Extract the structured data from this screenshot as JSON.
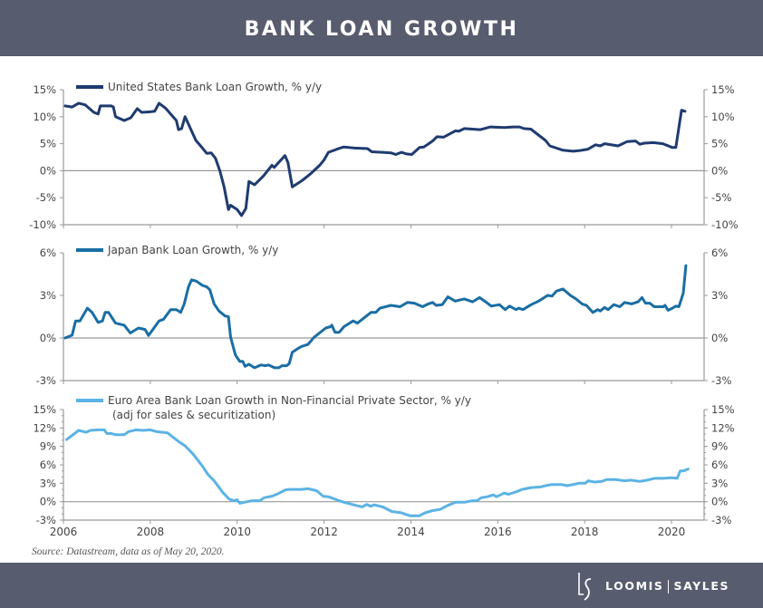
{
  "header": {
    "title": "BANK LOAN GROWTH"
  },
  "source": "Source: Datastream, data as of May 20, 2020.",
  "logo": {
    "left": "LOOMIS",
    "right": "SAYLES",
    "mark": "LS"
  },
  "chart_data": [
    {
      "type": "line",
      "legend": [
        "United States Bank Loan Growth, % y/y"
      ],
      "color": "#1f3b70",
      "ylim": [
        -10,
        15
      ],
      "yticks": [
        "15%",
        "10%",
        "5%",
        "0%",
        "-5%",
        "-10%"
      ],
      "ytick_values": [
        15,
        10,
        5,
        0,
        -5,
        -10
      ],
      "xlim": [
        2006,
        2020.75
      ],
      "points": [
        [
          2006.04,
          12
        ],
        [
          2006.2,
          11.8
        ],
        [
          2006.35,
          12.5
        ],
        [
          2006.5,
          12.2
        ],
        [
          2006.7,
          10.8
        ],
        [
          2006.8,
          10.5
        ],
        [
          2006.85,
          12
        ],
        [
          2007.1,
          12
        ],
        [
          2007.15,
          11.8
        ],
        [
          2007.2,
          10
        ],
        [
          2007.4,
          9.3
        ],
        [
          2007.55,
          9.8
        ],
        [
          2007.7,
          11.5
        ],
        [
          2007.8,
          10.8
        ],
        [
          2008.0,
          10.9
        ],
        [
          2008.1,
          11
        ],
        [
          2008.2,
          12.5
        ],
        [
          2008.35,
          11.6
        ],
        [
          2008.6,
          9.3
        ],
        [
          2008.65,
          7.6
        ],
        [
          2008.72,
          7.8
        ],
        [
          2008.8,
          10
        ],
        [
          2009.05,
          5.6
        ],
        [
          2009.2,
          4.2
        ],
        [
          2009.3,
          3.2
        ],
        [
          2009.4,
          3.3
        ],
        [
          2009.5,
          2.3
        ],
        [
          2009.6,
          0
        ],
        [
          2009.7,
          -3
        ],
        [
          2009.8,
          -7.2
        ],
        [
          2009.85,
          -6.4
        ],
        [
          2010.0,
          -7.2
        ],
        [
          2010.1,
          -8.3
        ],
        [
          2010.2,
          -7
        ],
        [
          2010.27,
          -2
        ],
        [
          2010.4,
          -2.6
        ],
        [
          2010.6,
          -1
        ],
        [
          2010.8,
          1
        ],
        [
          2010.85,
          0.6
        ],
        [
          2011.1,
          2.8
        ],
        [
          2011.17,
          1.5
        ],
        [
          2011.27,
          -3
        ],
        [
          2011.5,
          -1.8
        ],
        [
          2011.7,
          -0.5
        ],
        [
          2011.9,
          1
        ],
        [
          2012.0,
          2
        ],
        [
          2012.1,
          3.4
        ],
        [
          2012.3,
          4
        ],
        [
          2012.45,
          4.4
        ],
        [
          2012.7,
          4.2
        ],
        [
          2013.0,
          4.1
        ],
        [
          2013.1,
          3.5
        ],
        [
          2013.35,
          3.4
        ],
        [
          2013.54,
          3.3
        ],
        [
          2013.65,
          3.0
        ],
        [
          2013.78,
          3.4
        ],
        [
          2013.9,
          3.1
        ],
        [
          2014.02,
          3.0
        ],
        [
          2014.2,
          4.3
        ],
        [
          2014.3,
          4.4
        ],
        [
          2014.5,
          5.5
        ],
        [
          2014.6,
          6.3
        ],
        [
          2014.75,
          6.2
        ],
        [
          2015.03,
          7.4
        ],
        [
          2015.1,
          7.3
        ],
        [
          2015.23,
          7.8
        ],
        [
          2015.6,
          7.6
        ],
        [
          2015.83,
          8.1
        ],
        [
          2016.15,
          8.0
        ],
        [
          2016.35,
          8.1
        ],
        [
          2016.5,
          8.1
        ],
        [
          2016.6,
          7.8
        ],
        [
          2016.76,
          7.7
        ],
        [
          2017.1,
          5.6
        ],
        [
          2017.2,
          4.6
        ],
        [
          2017.5,
          3.8
        ],
        [
          2017.73,
          3.6
        ],
        [
          2017.87,
          3.7
        ],
        [
          2018.08,
          4.0
        ],
        [
          2018.25,
          4.8
        ],
        [
          2018.36,
          4.6
        ],
        [
          2018.46,
          5.0
        ],
        [
          2018.77,
          4.6
        ],
        [
          2018.98,
          5.4
        ],
        [
          2019.17,
          5.5
        ],
        [
          2019.27,
          4.9
        ],
        [
          2019.37,
          5.1
        ],
        [
          2019.58,
          5.2
        ],
        [
          2019.8,
          5.0
        ],
        [
          2020.02,
          4.3
        ],
        [
          2020.1,
          4.3
        ],
        [
          2020.23,
          11.2
        ],
        [
          2020.31,
          11.0
        ]
      ]
    },
    {
      "type": "line",
      "legend": [
        "Japan Bank Loan Growth, % y/y"
      ],
      "color": "#1a6ea4",
      "ylim": [
        -3,
        6
      ],
      "yticks": [
        "6%",
        "3%",
        "0%",
        "-3%"
      ],
      "ytick_values": [
        6,
        3,
        0,
        -3
      ],
      "xlim": [
        2006,
        2020.75
      ],
      "points": [
        [
          2006.04,
          0
        ],
        [
          2006.2,
          0.2
        ],
        [
          2006.28,
          1.2
        ],
        [
          2006.38,
          1.2
        ],
        [
          2006.55,
          2.1
        ],
        [
          2006.66,
          1.8
        ],
        [
          2006.8,
          1.1
        ],
        [
          2006.9,
          1.2
        ],
        [
          2006.96,
          1.8
        ],
        [
          2007.04,
          1.8
        ],
        [
          2007.2,
          1.05
        ],
        [
          2007.4,
          0.9
        ],
        [
          2007.54,
          0.35
        ],
        [
          2007.73,
          0.7
        ],
        [
          2007.88,
          0.6
        ],
        [
          2007.96,
          0.17
        ],
        [
          2008.2,
          1.2
        ],
        [
          2008.3,
          1.3
        ],
        [
          2008.47,
          2.0
        ],
        [
          2008.6,
          2.0
        ],
        [
          2008.7,
          1.8
        ],
        [
          2008.78,
          2.4
        ],
        [
          2008.88,
          3.6
        ],
        [
          2008.95,
          4.1
        ],
        [
          2009.06,
          4.0
        ],
        [
          2009.2,
          3.7
        ],
        [
          2009.3,
          3.6
        ],
        [
          2009.37,
          3.4
        ],
        [
          2009.47,
          2.4
        ],
        [
          2009.58,
          1.9
        ],
        [
          2009.72,
          1.55
        ],
        [
          2009.8,
          1.5
        ],
        [
          2009.85,
          0.05
        ],
        [
          2009.96,
          -1.2
        ],
        [
          2010.06,
          -1.65
        ],
        [
          2010.13,
          -1.65
        ],
        [
          2010.18,
          -2.0
        ],
        [
          2010.27,
          -1.85
        ],
        [
          2010.4,
          -2.1
        ],
        [
          2010.55,
          -1.9
        ],
        [
          2010.65,
          -1.95
        ],
        [
          2010.72,
          -1.9
        ],
        [
          2010.86,
          -2.1
        ],
        [
          2010.96,
          -2.1
        ],
        [
          2011.03,
          -1.95
        ],
        [
          2011.14,
          -1.95
        ],
        [
          2011.2,
          -1.8
        ],
        [
          2011.27,
          -1.0
        ],
        [
          2011.42,
          -0.7
        ],
        [
          2011.48,
          -0.6
        ],
        [
          2011.63,
          -0.45
        ],
        [
          2011.77,
          0.05
        ],
        [
          2012.04,
          0.7
        ],
        [
          2012.15,
          0.8
        ],
        [
          2012.18,
          0.9
        ],
        [
          2012.25,
          0.4
        ],
        [
          2012.35,
          0.4
        ],
        [
          2012.46,
          0.8
        ],
        [
          2012.67,
          1.2
        ],
        [
          2012.77,
          1.05
        ],
        [
          2013.08,
          1.8
        ],
        [
          2013.19,
          1.8
        ],
        [
          2013.29,
          2.1
        ],
        [
          2013.54,
          2.3
        ],
        [
          2013.75,
          2.2
        ],
        [
          2013.92,
          2.5
        ],
        [
          2014.08,
          2.45
        ],
        [
          2014.27,
          2.2
        ],
        [
          2014.4,
          2.4
        ],
        [
          2014.5,
          2.5
        ],
        [
          2014.58,
          2.3
        ],
        [
          2014.72,
          2.35
        ],
        [
          2014.85,
          2.9
        ],
        [
          2015.02,
          2.6
        ],
        [
          2015.23,
          2.75
        ],
        [
          2015.42,
          2.55
        ],
        [
          2015.58,
          2.85
        ],
        [
          2015.72,
          2.55
        ],
        [
          2015.85,
          2.25
        ],
        [
          2016.04,
          2.35
        ],
        [
          2016.17,
          2.0
        ],
        [
          2016.27,
          2.25
        ],
        [
          2016.42,
          2.0
        ],
        [
          2016.48,
          2.1
        ],
        [
          2016.58,
          2.0
        ],
        [
          2016.77,
          2.35
        ],
        [
          2016.94,
          2.6
        ],
        [
          2017.15,
          3.0
        ],
        [
          2017.25,
          2.95
        ],
        [
          2017.35,
          3.3
        ],
        [
          2017.5,
          3.45
        ],
        [
          2017.67,
          3.0
        ],
        [
          2017.8,
          2.75
        ],
        [
          2017.94,
          2.4
        ],
        [
          2018.04,
          2.3
        ],
        [
          2018.19,
          1.8
        ],
        [
          2018.3,
          2.0
        ],
        [
          2018.36,
          1.9
        ],
        [
          2018.46,
          2.15
        ],
        [
          2018.54,
          2.0
        ],
        [
          2018.67,
          2.35
        ],
        [
          2018.81,
          2.2
        ],
        [
          2018.92,
          2.5
        ],
        [
          2019.08,
          2.4
        ],
        [
          2019.23,
          2.55
        ],
        [
          2019.32,
          2.85
        ],
        [
          2019.4,
          2.45
        ],
        [
          2019.5,
          2.45
        ],
        [
          2019.6,
          2.2
        ],
        [
          2019.81,
          2.2
        ],
        [
          2019.85,
          2.3
        ],
        [
          2019.92,
          1.95
        ],
        [
          2020.02,
          2.1
        ],
        [
          2020.1,
          2.25
        ],
        [
          2020.17,
          2.2
        ],
        [
          2020.27,
          3.15
        ],
        [
          2020.33,
          5.1
        ]
      ]
    },
    {
      "type": "line",
      "legend": [
        "Euro Area Bank Loan Growth in Non-Financial Private Sector, % y/y",
        "(adj for sales & securitization)"
      ],
      "color": "#5cb3e4",
      "ylim": [
        -3,
        15
      ],
      "yticks": [
        "15%",
        "12%",
        "9%",
        "6%",
        "3%",
        "0%",
        "-3%"
      ],
      "ytick_values": [
        15,
        12,
        9,
        6,
        3,
        0,
        -3
      ],
      "xlim": [
        2006,
        2020.75
      ],
      "xticks": [
        "2006",
        "2008",
        "2010",
        "2012",
        "2014",
        "2016",
        "2018",
        "2020"
      ],
      "xtick_values": [
        2006,
        2008,
        2010,
        2012,
        2014,
        2016,
        2018,
        2020
      ],
      "points": [
        [
          2006.07,
          10.1
        ],
        [
          2006.2,
          10.8
        ],
        [
          2006.35,
          11.6
        ],
        [
          2006.52,
          11.3
        ],
        [
          2006.62,
          11.6
        ],
        [
          2006.8,
          11.7
        ],
        [
          2006.94,
          11.7
        ],
        [
          2007.0,
          11.1
        ],
        [
          2007.1,
          11.1
        ],
        [
          2007.2,
          10.9
        ],
        [
          2007.4,
          10.9
        ],
        [
          2007.5,
          11.4
        ],
        [
          2007.67,
          11.7
        ],
        [
          2007.84,
          11.6
        ],
        [
          2008.0,
          11.7
        ],
        [
          2008.15,
          11.4
        ],
        [
          2008.4,
          11.2
        ],
        [
          2008.65,
          9.8
        ],
        [
          2008.8,
          9.1
        ],
        [
          2008.98,
          7.8
        ],
        [
          2009.2,
          5.8
        ],
        [
          2009.33,
          4.4
        ],
        [
          2009.47,
          3.4
        ],
        [
          2009.68,
          1.4
        ],
        [
          2009.82,
          0.4
        ],
        [
          2009.93,
          0.15
        ],
        [
          2010.0,
          0.3
        ],
        [
          2010.06,
          -0.25
        ],
        [
          2010.23,
          0
        ],
        [
          2010.34,
          0.15
        ],
        [
          2010.52,
          0.15
        ],
        [
          2010.62,
          0.65
        ],
        [
          2010.8,
          0.9
        ],
        [
          2010.94,
          1.3
        ],
        [
          2011.1,
          1.9
        ],
        [
          2011.2,
          2.0
        ],
        [
          2011.48,
          2.0
        ],
        [
          2011.63,
          2.1
        ],
        [
          2011.83,
          1.8
        ],
        [
          2011.98,
          0.9
        ],
        [
          2012.1,
          0.8
        ],
        [
          2012.35,
          0.15
        ],
        [
          2012.46,
          -0.1
        ],
        [
          2012.73,
          -0.6
        ],
        [
          2012.88,
          -0.85
        ],
        [
          2012.98,
          -0.45
        ],
        [
          2013.08,
          -0.75
        ],
        [
          2013.15,
          -0.5
        ],
        [
          2013.35,
          -0.85
        ],
        [
          2013.56,
          -1.6
        ],
        [
          2013.78,
          -1.8
        ],
        [
          2013.98,
          -2.3
        ],
        [
          2014.19,
          -2.3
        ],
        [
          2014.33,
          -1.8
        ],
        [
          2014.5,
          -1.45
        ],
        [
          2014.68,
          -1.25
        ],
        [
          2014.82,
          -0.7
        ],
        [
          2015.03,
          -0.1
        ],
        [
          2015.23,
          -0.1
        ],
        [
          2015.42,
          0.15
        ],
        [
          2015.52,
          0.15
        ],
        [
          2015.62,
          0.65
        ],
        [
          2015.76,
          0.8
        ],
        [
          2015.9,
          1.1
        ],
        [
          2015.97,
          0.8
        ],
        [
          2016.15,
          1.4
        ],
        [
          2016.25,
          1.2
        ],
        [
          2016.42,
          1.6
        ],
        [
          2016.56,
          2.0
        ],
        [
          2016.77,
          2.3
        ],
        [
          2016.98,
          2.4
        ],
        [
          2017.1,
          2.6
        ],
        [
          2017.25,
          2.8
        ],
        [
          2017.46,
          2.8
        ],
        [
          2017.6,
          2.6
        ],
        [
          2017.88,
          3.0
        ],
        [
          2018.02,
          3.0
        ],
        [
          2018.08,
          3.4
        ],
        [
          2018.23,
          3.2
        ],
        [
          2018.4,
          3.3
        ],
        [
          2018.5,
          3.6
        ],
        [
          2018.71,
          3.6
        ],
        [
          2018.92,
          3.4
        ],
        [
          2019.06,
          3.5
        ],
        [
          2019.27,
          3.3
        ],
        [
          2019.44,
          3.5
        ],
        [
          2019.6,
          3.8
        ],
        [
          2019.81,
          3.8
        ],
        [
          2020.0,
          3.9
        ],
        [
          2020.13,
          3.8
        ],
        [
          2020.2,
          5.0
        ],
        [
          2020.27,
          5.0
        ],
        [
          2020.38,
          5.3
        ]
      ]
    }
  ]
}
